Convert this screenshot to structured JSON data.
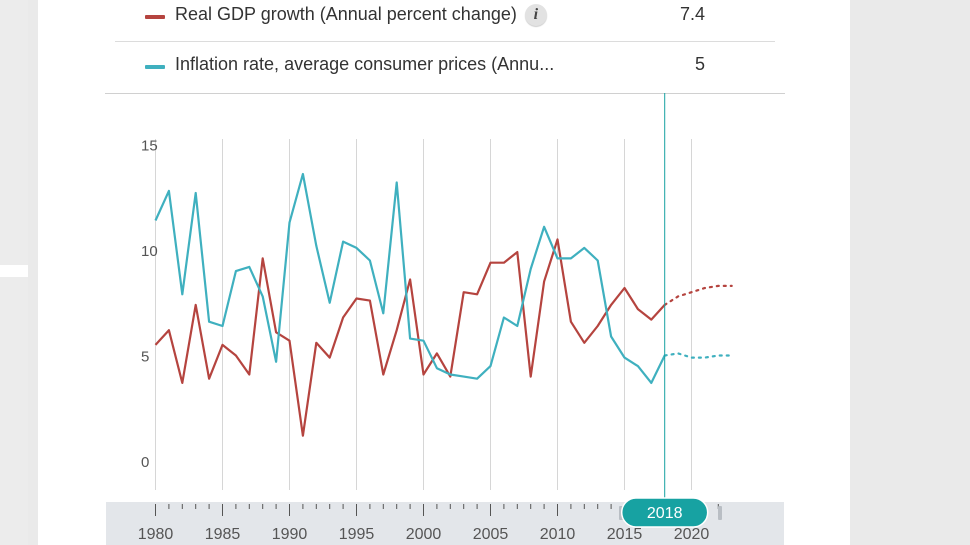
{
  "legend": [
    {
      "label": "Real GDP growth (Annual percent change)",
      "value": "7.4",
      "color": "#b5443f",
      "info_icon": "info-icon"
    },
    {
      "label": "Inflation rate, average consumer prices (Annu...",
      "value": "5",
      "color": "#3fb0bf"
    }
  ],
  "timeline": {
    "selected_year": "2018",
    "handle_color": "#17a2a2"
  },
  "chart_data": {
    "type": "line",
    "x_tick_labels": [
      "1980",
      "1985",
      "1990",
      "1995",
      "2000",
      "2005",
      "2010",
      "2015",
      "2020"
    ],
    "y_tick_labels": [
      "0",
      "5",
      "10",
      "15"
    ],
    "xlim": [
      1980,
      2023
    ],
    "ylim": [
      0,
      15
    ],
    "grid": true,
    "projection_from": 2018,
    "series": [
      {
        "name": "Real GDP growth (Annual percent change)",
        "color": "#b5443f",
        "x": [
          1980,
          1981,
          1982,
          1983,
          1984,
          1985,
          1986,
          1987,
          1988,
          1989,
          1990,
          1991,
          1992,
          1993,
          1994,
          1995,
          1996,
          1997,
          1998,
          1999,
          2000,
          2001,
          2002,
          2003,
          2004,
          2005,
          2006,
          2007,
          2008,
          2009,
          2010,
          2011,
          2012,
          2013,
          2014,
          2015,
          2016,
          2017,
          2018,
          2019,
          2020,
          2021,
          2022,
          2023
        ],
        "values": [
          5.5,
          6.2,
          3.7,
          7.4,
          3.9,
          5.5,
          5.0,
          4.1,
          9.6,
          6.1,
          5.7,
          1.2,
          5.6,
          4.9,
          6.8,
          7.7,
          7.6,
          4.1,
          6.2,
          8.6,
          4.1,
          5.1,
          4.0,
          8.0,
          7.9,
          9.4,
          9.4,
          9.9,
          4.0,
          8.5,
          10.5,
          6.6,
          5.6,
          6.4,
          7.4,
          8.2,
          7.2,
          6.7,
          7.4,
          7.8,
          8.0,
          8.2,
          8.3,
          8.3
        ]
      },
      {
        "name": "Inflation rate, average consumer prices (Annu...",
        "color": "#3fb0bf",
        "x": [
          1980,
          1981,
          1982,
          1983,
          1984,
          1985,
          1986,
          1987,
          1988,
          1989,
          1990,
          1991,
          1992,
          1993,
          1994,
          1995,
          1996,
          1997,
          1998,
          1999,
          2000,
          2001,
          2002,
          2003,
          2004,
          2005,
          2006,
          2007,
          2008,
          2009,
          2010,
          2011,
          2012,
          2013,
          2014,
          2015,
          2016,
          2017,
          2018,
          2019,
          2020,
          2021,
          2022,
          2023
        ],
        "values": [
          11.4,
          12.8,
          7.9,
          12.7,
          6.6,
          6.4,
          9.0,
          9.2,
          7.8,
          4.7,
          11.3,
          13.6,
          10.2,
          7.5,
          10.4,
          10.1,
          9.5,
          7.0,
          13.2,
          5.8,
          5.7,
          4.4,
          4.1,
          4.0,
          3.9,
          4.5,
          6.8,
          6.4,
          9.1,
          11.1,
          9.6,
          9.6,
          10.1,
          9.5,
          5.9,
          4.9,
          4.5,
          3.7,
          5.0,
          5.1,
          4.9,
          4.9,
          5.0,
          5.0
        ]
      }
    ]
  }
}
